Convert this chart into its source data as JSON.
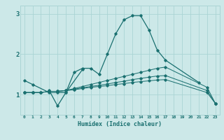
{
  "x": [
    0,
    1,
    2,
    3,
    4,
    5,
    6,
    7,
    8,
    9,
    10,
    11,
    12,
    13,
    14,
    15,
    16,
    17,
    18,
    19,
    20,
    21,
    22,
    23
  ],
  "line1": [
    1.35,
    1.25,
    null,
    1.05,
    1.05,
    1.05,
    1.55,
    1.65,
    1.65,
    1.5,
    2.0,
    2.5,
    2.85,
    2.95,
    2.95,
    2.6,
    2.1,
    1.85,
    null,
    null,
    null,
    1.3,
    null,
    null
  ],
  "line2": [
    null,
    null,
    null,
    1.1,
    0.72,
    1.05,
    null,
    1.62,
    null,
    null,
    null,
    null,
    null,
    null,
    null,
    null,
    null,
    null,
    null,
    null,
    null,
    null,
    null,
    null
  ],
  "line3": [
    1.05,
    1.05,
    1.05,
    1.08,
    1.08,
    1.1,
    1.12,
    1.15,
    1.18,
    1.2,
    1.22,
    1.25,
    1.27,
    1.3,
    1.32,
    1.34,
    1.36,
    1.37,
    null,
    null,
    null,
    null,
    1.05,
    0.78
  ],
  "line4": [
    1.05,
    1.05,
    1.05,
    1.08,
    1.08,
    1.1,
    1.13,
    1.17,
    1.2,
    1.23,
    1.26,
    1.3,
    1.33,
    1.37,
    1.4,
    1.43,
    1.46,
    1.47,
    null,
    null,
    null,
    null,
    1.1,
    0.78
  ],
  "line5": [
    1.05,
    1.05,
    1.05,
    1.08,
    1.08,
    1.1,
    1.15,
    1.2,
    1.25,
    1.3,
    1.35,
    1.4,
    1.45,
    1.5,
    1.55,
    1.6,
    1.65,
    1.68,
    null,
    null,
    null,
    null,
    1.18,
    0.78
  ],
  "bg_color": "#cce8e8",
  "line_color": "#1a7070",
  "grid_color": "#aad4d4",
  "xlabel": "Humidex (Indice chaleur)",
  "yticks": [
    1,
    2,
    3
  ],
  "ylim": [
    0.5,
    3.2
  ],
  "xlim": [
    -0.5,
    23.5
  ]
}
